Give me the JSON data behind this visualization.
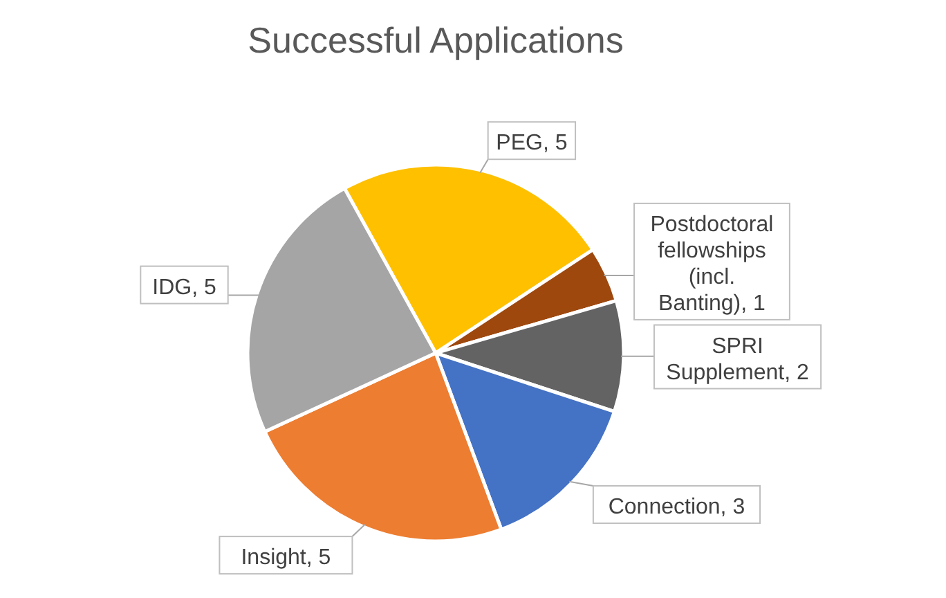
{
  "chart_data": {
    "type": "pie",
    "title": "Successful Applications",
    "categories": [
      "PEG",
      "Postdoctoral fellowships (incl. Banting)",
      "SPRI Supplement",
      "Connection",
      "Insight",
      "IDG"
    ],
    "values": [
      5,
      1,
      2,
      3,
      5,
      5
    ],
    "value_labels": [
      ", 5",
      ", 1",
      ", 2",
      ", 3",
      ", 5",
      ", 5"
    ],
    "colors": [
      "#ffc000",
      "#9e480e",
      "#636363",
      "#4472c4",
      "#ed7d31",
      "#a5a5a5"
    ]
  }
}
